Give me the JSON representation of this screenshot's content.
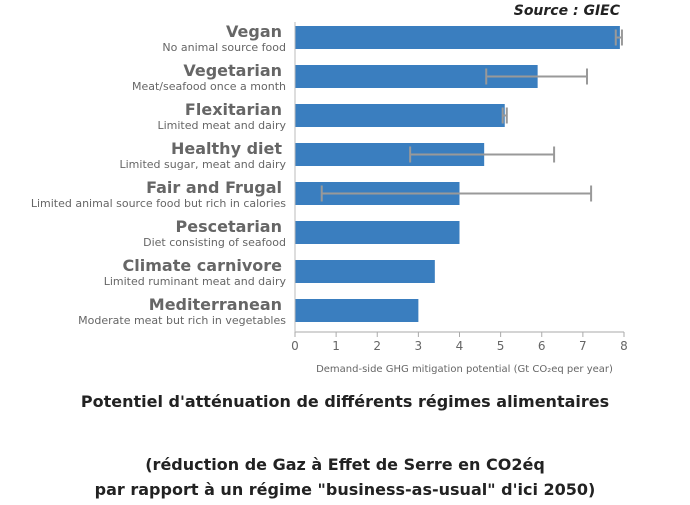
{
  "source": "Source : GIEC",
  "caption": {
    "line1": "Potentiel d'atténuation de différents régimes alimentaires",
    "line2": "(réduction de Gaz à Effet de Serre en CO2éq",
    "line3": "par rapport à un régime \"business-as-usual\" d'ici 2050)"
  },
  "chart_data": {
    "type": "bar",
    "orientation": "horizontal",
    "xlabel": "Demand-side GHG mitigation potential (Gt CO₂eq per year)",
    "xlim": [
      0,
      8
    ],
    "xticks": [
      "0",
      "1",
      "2",
      "3",
      "4",
      "5",
      "6",
      "7",
      "8"
    ],
    "bar_color": "#3a7ebf",
    "errorbar_color": "#999999",
    "grid": false,
    "categories": [
      {
        "name": "Vegan",
        "subtitle": "No animal source food",
        "value": 7.9,
        "err_low": 7.8,
        "err_high": 7.95
      },
      {
        "name": "Vegetarian",
        "subtitle": "Meat/seafood once a month",
        "value": 5.9,
        "err_low": 4.65,
        "err_high": 7.1
      },
      {
        "name": "Flexitarian",
        "subtitle": "Limited meat and dairy",
        "value": 5.1,
        "err_low": 5.05,
        "err_high": 5.15
      },
      {
        "name": "Healthy diet",
        "subtitle": "Limited sugar, meat and dairy",
        "value": 4.6,
        "err_low": 2.8,
        "err_high": 6.3
      },
      {
        "name": "Fair and Frugal",
        "subtitle": "Limited animal source food but rich in calories",
        "value": 4.0,
        "err_low": 0.65,
        "err_high": 7.2
      },
      {
        "name": "Pescetarian",
        "subtitle": "Diet consisting of seafood",
        "value": 4.0
      },
      {
        "name": "Climate carnivore",
        "subtitle": "Limited ruminant meat and dairy",
        "value": 3.4
      },
      {
        "name": "Mediterranean",
        "subtitle": "Moderate meat but rich in vegetables",
        "value": 3.0
      }
    ]
  }
}
